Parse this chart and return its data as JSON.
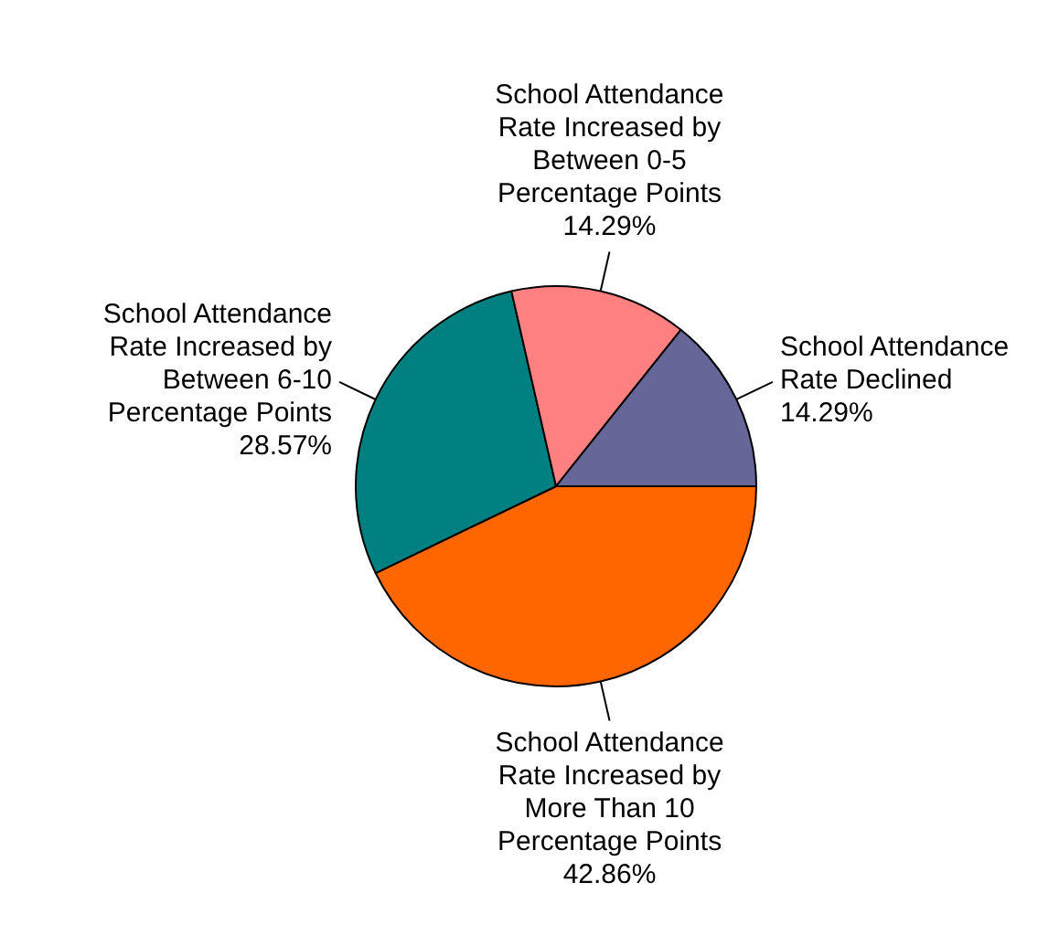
{
  "chart_data": {
    "type": "pie",
    "categories": [
      "School Attendance Rate Increased by More Than 10 Percentage Points",
      "School Attendance Rate Increased by Between 6-10 Percentage Points",
      "School Attendance Rate Increased by Between 0-5 Percentage Points",
      "School Attendance Rate Declined"
    ],
    "values": [
      42.86,
      28.57,
      14.29,
      14.29
    ],
    "colors": [
      "#ff6600",
      "#008080",
      "#ff8080",
      "#666699"
    ],
    "value_labels": [
      "42.86%",
      "28.57%",
      "14.29%",
      "14.29%"
    ],
    "legend": false
  }
}
